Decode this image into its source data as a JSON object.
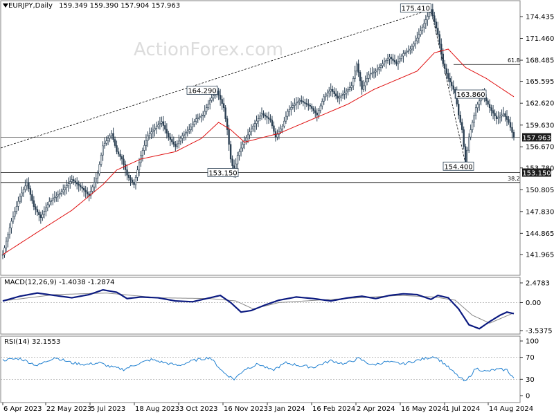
{
  "header": {
    "symbol": "EURJPY,Daily",
    "ohlc": "159.349 159.390 157.904 157.963"
  },
  "watermark": "ActionForex.com",
  "price_panel": {
    "y_ticks": [
      "174.435",
      "171.460",
      "168.485",
      "165.595",
      "162.620",
      "159.630",
      "156.670",
      "153.780",
      "150.805",
      "147.830",
      "144.865",
      "141.965"
    ],
    "current_price_label": "157.963",
    "support_label": "153.150",
    "fib_labels": [
      "61.8",
      "38.2"
    ],
    "annotations": [
      "175.410",
      "164.290",
      "163.860",
      "154.400",
      "153.150"
    ]
  },
  "macd_panel": {
    "title": "MACD(12,26,9) -1.4038 -1.2874",
    "y_ticks": [
      "2.4783",
      "0.00",
      "-3.5375"
    ]
  },
  "rsi_panel": {
    "title": "RSI(14) 32.1553",
    "y_ticks": [
      "100",
      "70",
      "30",
      "0"
    ]
  },
  "x_axis": {
    "labels": [
      "6 Apr 2023",
      "22 May 2023",
      "5 Jul 2023",
      "18 Aug 2023",
      "3 Oct 2023",
      "16 Nov 2023",
      "3 Jan 2024",
      "16 Feb 2024",
      "2 Apr 2024",
      "16 May 2024",
      "1 Jul 2024",
      "14 Aug 2024"
    ]
  },
  "chart_data": [
    {
      "type": "line",
      "series_role": "price-candles-and-ma",
      "y_scale": [
        141.965,
        174.435
      ],
      "price_path": [
        [
          0,
          141.96
        ],
        [
          5,
          146.5
        ],
        [
          10,
          149.9
        ],
        [
          14,
          151.8
        ],
        [
          18,
          148.5
        ],
        [
          22,
          147.0
        ],
        [
          27,
          149.2
        ],
        [
          34,
          150.5
        ],
        [
          40,
          152.2
        ],
        [
          46,
          151.0
        ],
        [
          50,
          150.0
        ],
        [
          55,
          153.0
        ],
        [
          58,
          156.8
        ],
        [
          63,
          158.5
        ],
        [
          66,
          156.0
        ],
        [
          69,
          155.0
        ],
        [
          72,
          152.8
        ],
        [
          76,
          151.5
        ],
        [
          80,
          155.5
        ],
        [
          84,
          158.2
        ],
        [
          88,
          159.2
        ],
        [
          92,
          160.1
        ],
        [
          96,
          158.0
        ],
        [
          100,
          156.7
        ],
        [
          104,
          158.2
        ],
        [
          108,
          159.0
        ],
        [
          112,
          160.5
        ],
        [
          116,
          161.0
        ],
        [
          120,
          163.0
        ],
        [
          124,
          164.29
        ],
        [
          128,
          162.0
        ],
        [
          130,
          159.0
        ],
        [
          132,
          155.0
        ],
        [
          134,
          153.15
        ],
        [
          136,
          155.5
        ],
        [
          140,
          157.5
        ],
        [
          145,
          159.5
        ],
        [
          150,
          161.2
        ],
        [
          155,
          160.3
        ],
        [
          158,
          158.0
        ],
        [
          162,
          159.5
        ],
        [
          165,
          161.5
        ],
        [
          168,
          162.3
        ],
        [
          172,
          163.0
        ],
        [
          178,
          162.2
        ],
        [
          182,
          161.0
        ],
        [
          186,
          163.5
        ],
        [
          190,
          164.5
        ],
        [
          194,
          163.3
        ],
        [
          198,
          164.0
        ],
        [
          202,
          165.0
        ],
        [
          205,
          168.0
        ],
        [
          208,
          164.5
        ],
        [
          212,
          166.5
        ],
        [
          216,
          167.0
        ],
        [
          220,
          168.0
        ],
        [
          224,
          168.9
        ],
        [
          228,
          168.0
        ],
        [
          232,
          169.4
        ],
        [
          236,
          170.0
        ],
        [
          240,
          171.5
        ],
        [
          245,
          174.0
        ],
        [
          248,
          175.41
        ],
        [
          252,
          172.0
        ],
        [
          255,
          168.0
        ],
        [
          258,
          166.0
        ],
        [
          262,
          164.0
        ],
        [
          264,
          161.0
        ],
        [
          266,
          159.0
        ],
        [
          268,
          154.4
        ],
        [
          270,
          158.0
        ],
        [
          274,
          162.0
        ],
        [
          278,
          163.86
        ],
        [
          282,
          162.0
        ],
        [
          286,
          160.5
        ],
        [
          290,
          161.2
        ],
        [
          293,
          160.0
        ],
        [
          296,
          157.96
        ]
      ],
      "ma_path": [
        [
          0,
          141.96
        ],
        [
          20,
          145.0
        ],
        [
          40,
          148.0
        ],
        [
          58,
          151.5
        ],
        [
          66,
          153.5
        ],
        [
          80,
          155.0
        ],
        [
          100,
          156.0
        ],
        [
          115,
          157.8
        ],
        [
          125,
          160.0
        ],
        [
          132,
          159.0
        ],
        [
          140,
          157.3
        ],
        [
          160,
          158.5
        ],
        [
          180,
          160.5
        ],
        [
          200,
          162.5
        ],
        [
          215,
          164.5
        ],
        [
          230,
          166.0
        ],
        [
          240,
          167.0
        ],
        [
          250,
          169.5
        ],
        [
          258,
          170.0
        ],
        [
          262,
          169.0
        ],
        [
          268,
          167.5
        ],
        [
          280,
          166.0
        ],
        [
          296,
          163.5
        ]
      ]
    },
    {
      "type": "line",
      "series_role": "macd",
      "ylim": [
        -3.5375,
        2.4783
      ],
      "macd": [
        [
          0,
          0.2
        ],
        [
          10,
          0.8
        ],
        [
          20,
          1.2
        ],
        [
          30,
          0.9
        ],
        [
          40,
          0.6
        ],
        [
          50,
          1.0
        ],
        [
          58,
          1.6
        ],
        [
          66,
          1.3
        ],
        [
          72,
          0.5
        ],
        [
          80,
          0.7
        ],
        [
          90,
          0.6
        ],
        [
          100,
          0.2
        ],
        [
          110,
          0.1
        ],
        [
          120,
          0.6
        ],
        [
          126,
          0.9
        ],
        [
          132,
          0.0
        ],
        [
          138,
          -1.2
        ],
        [
          144,
          -1.0
        ],
        [
          152,
          -0.3
        ],
        [
          160,
          0.3
        ],
        [
          170,
          0.7
        ],
        [
          180,
          0.5
        ],
        [
          190,
          0.2
        ],
        [
          200,
          0.6
        ],
        [
          208,
          0.8
        ],
        [
          216,
          0.5
        ],
        [
          224,
          0.9
        ],
        [
          232,
          1.1
        ],
        [
          240,
          1.0
        ],
        [
          248,
          0.4
        ],
        [
          252,
          0.9
        ],
        [
          258,
          0.6
        ],
        [
          264,
          -0.8
        ],
        [
          270,
          -2.8
        ],
        [
          276,
          -3.3
        ],
        [
          282,
          -2.4
        ],
        [
          288,
          -1.6
        ],
        [
          292,
          -1.2
        ],
        [
          296,
          -1.4
        ]
      ],
      "signal": [
        [
          0,
          0.2
        ],
        [
          30,
          1.0
        ],
        [
          60,
          1.2
        ],
        [
          90,
          0.6
        ],
        [
          120,
          0.5
        ],
        [
          135,
          0.2
        ],
        [
          145,
          -0.8
        ],
        [
          160,
          0.0
        ],
        [
          190,
          0.4
        ],
        [
          230,
          0.9
        ],
        [
          250,
          0.7
        ],
        [
          262,
          0.3
        ],
        [
          272,
          -1.6
        ],
        [
          282,
          -2.6
        ],
        [
          296,
          -1.3
        ]
      ]
    },
    {
      "type": "line",
      "series_role": "rsi",
      "ylim": [
        0,
        100
      ],
      "rsi": [
        [
          0,
          65
        ],
        [
          10,
          68
        ],
        [
          20,
          55
        ],
        [
          30,
          70
        ],
        [
          40,
          60
        ],
        [
          48,
          57
        ],
        [
          56,
          60
        ],
        [
          62,
          53
        ],
        [
          70,
          48
        ],
        [
          78,
          58
        ],
        [
          86,
          66
        ],
        [
          94,
          60
        ],
        [
          102,
          55
        ],
        [
          110,
          64
        ],
        [
          120,
          70
        ],
        [
          128,
          42
        ],
        [
          134,
          30
        ],
        [
          140,
          48
        ],
        [
          148,
          58
        ],
        [
          156,
          46
        ],
        [
          164,
          60
        ],
        [
          172,
          55
        ],
        [
          180,
          52
        ],
        [
          190,
          64
        ],
        [
          198,
          58
        ],
        [
          206,
          68
        ],
        [
          214,
          56
        ],
        [
          222,
          62
        ],
        [
          232,
          58
        ],
        [
          242,
          66
        ],
        [
          250,
          72
        ],
        [
          256,
          58
        ],
        [
          262,
          40
        ],
        [
          268,
          25
        ],
        [
          274,
          50
        ],
        [
          280,
          44
        ],
        [
          286,
          48
        ],
        [
          292,
          47
        ],
        [
          296,
          32
        ]
      ]
    }
  ]
}
